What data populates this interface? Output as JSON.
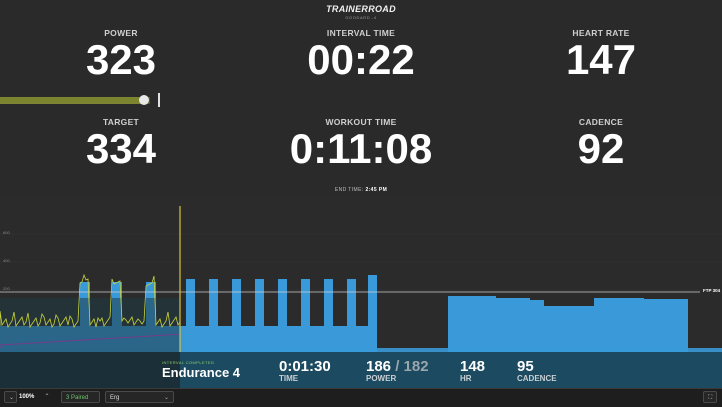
{
  "header": {
    "brand": "TRAINERROAD",
    "workout_name": "GOODARD -4"
  },
  "metrics": {
    "power": {
      "label": "POWER",
      "value": "323"
    },
    "interval_time": {
      "label": "INTERVAL TIME",
      "value": "00:22"
    },
    "heart_rate": {
      "label": "HEART RATE",
      "value": "147"
    },
    "target": {
      "label": "TARGET",
      "value": "334"
    },
    "workout_time": {
      "label": "WORKOUT TIME",
      "value": "0:11:08"
    },
    "cadence": {
      "label": "CADENCE",
      "value": "92"
    }
  },
  "power_bar": {
    "fraction": 0.967
  },
  "end_time": {
    "label": "END TIME:",
    "value": "2:45 PM"
  },
  "graph": {
    "ftp_label": "FTP 304",
    "ftp_value": 304,
    "start_label": "Start",
    "y_ticks": [
      "600",
      "400",
      "200"
    ],
    "progress_fraction": 0.25,
    "colors": {
      "interval": "#3a9ad9",
      "power": "#c8d43a",
      "hr": "#7a3a8a",
      "cursor": "#d8c43a"
    }
  },
  "interval_info": {
    "status_label": "INTERVAL COMPLETED",
    "name": "Endurance 4",
    "time": {
      "value": "0:01:30",
      "label": "TIME"
    },
    "power": {
      "actual": "186",
      "separator": "/",
      "target": "182",
      "label": "POWER"
    },
    "hr": {
      "value": "148",
      "label": "HR"
    },
    "cadence": {
      "value": "95",
      "label": "CADENCE"
    }
  },
  "toolbar": {
    "zoom_down": "⌄",
    "zoom": "100%",
    "zoom_up": "⌃",
    "paired": "3 Paired",
    "mode": "Erg",
    "mode_chevron": "⌄",
    "expand": "⛶"
  }
}
